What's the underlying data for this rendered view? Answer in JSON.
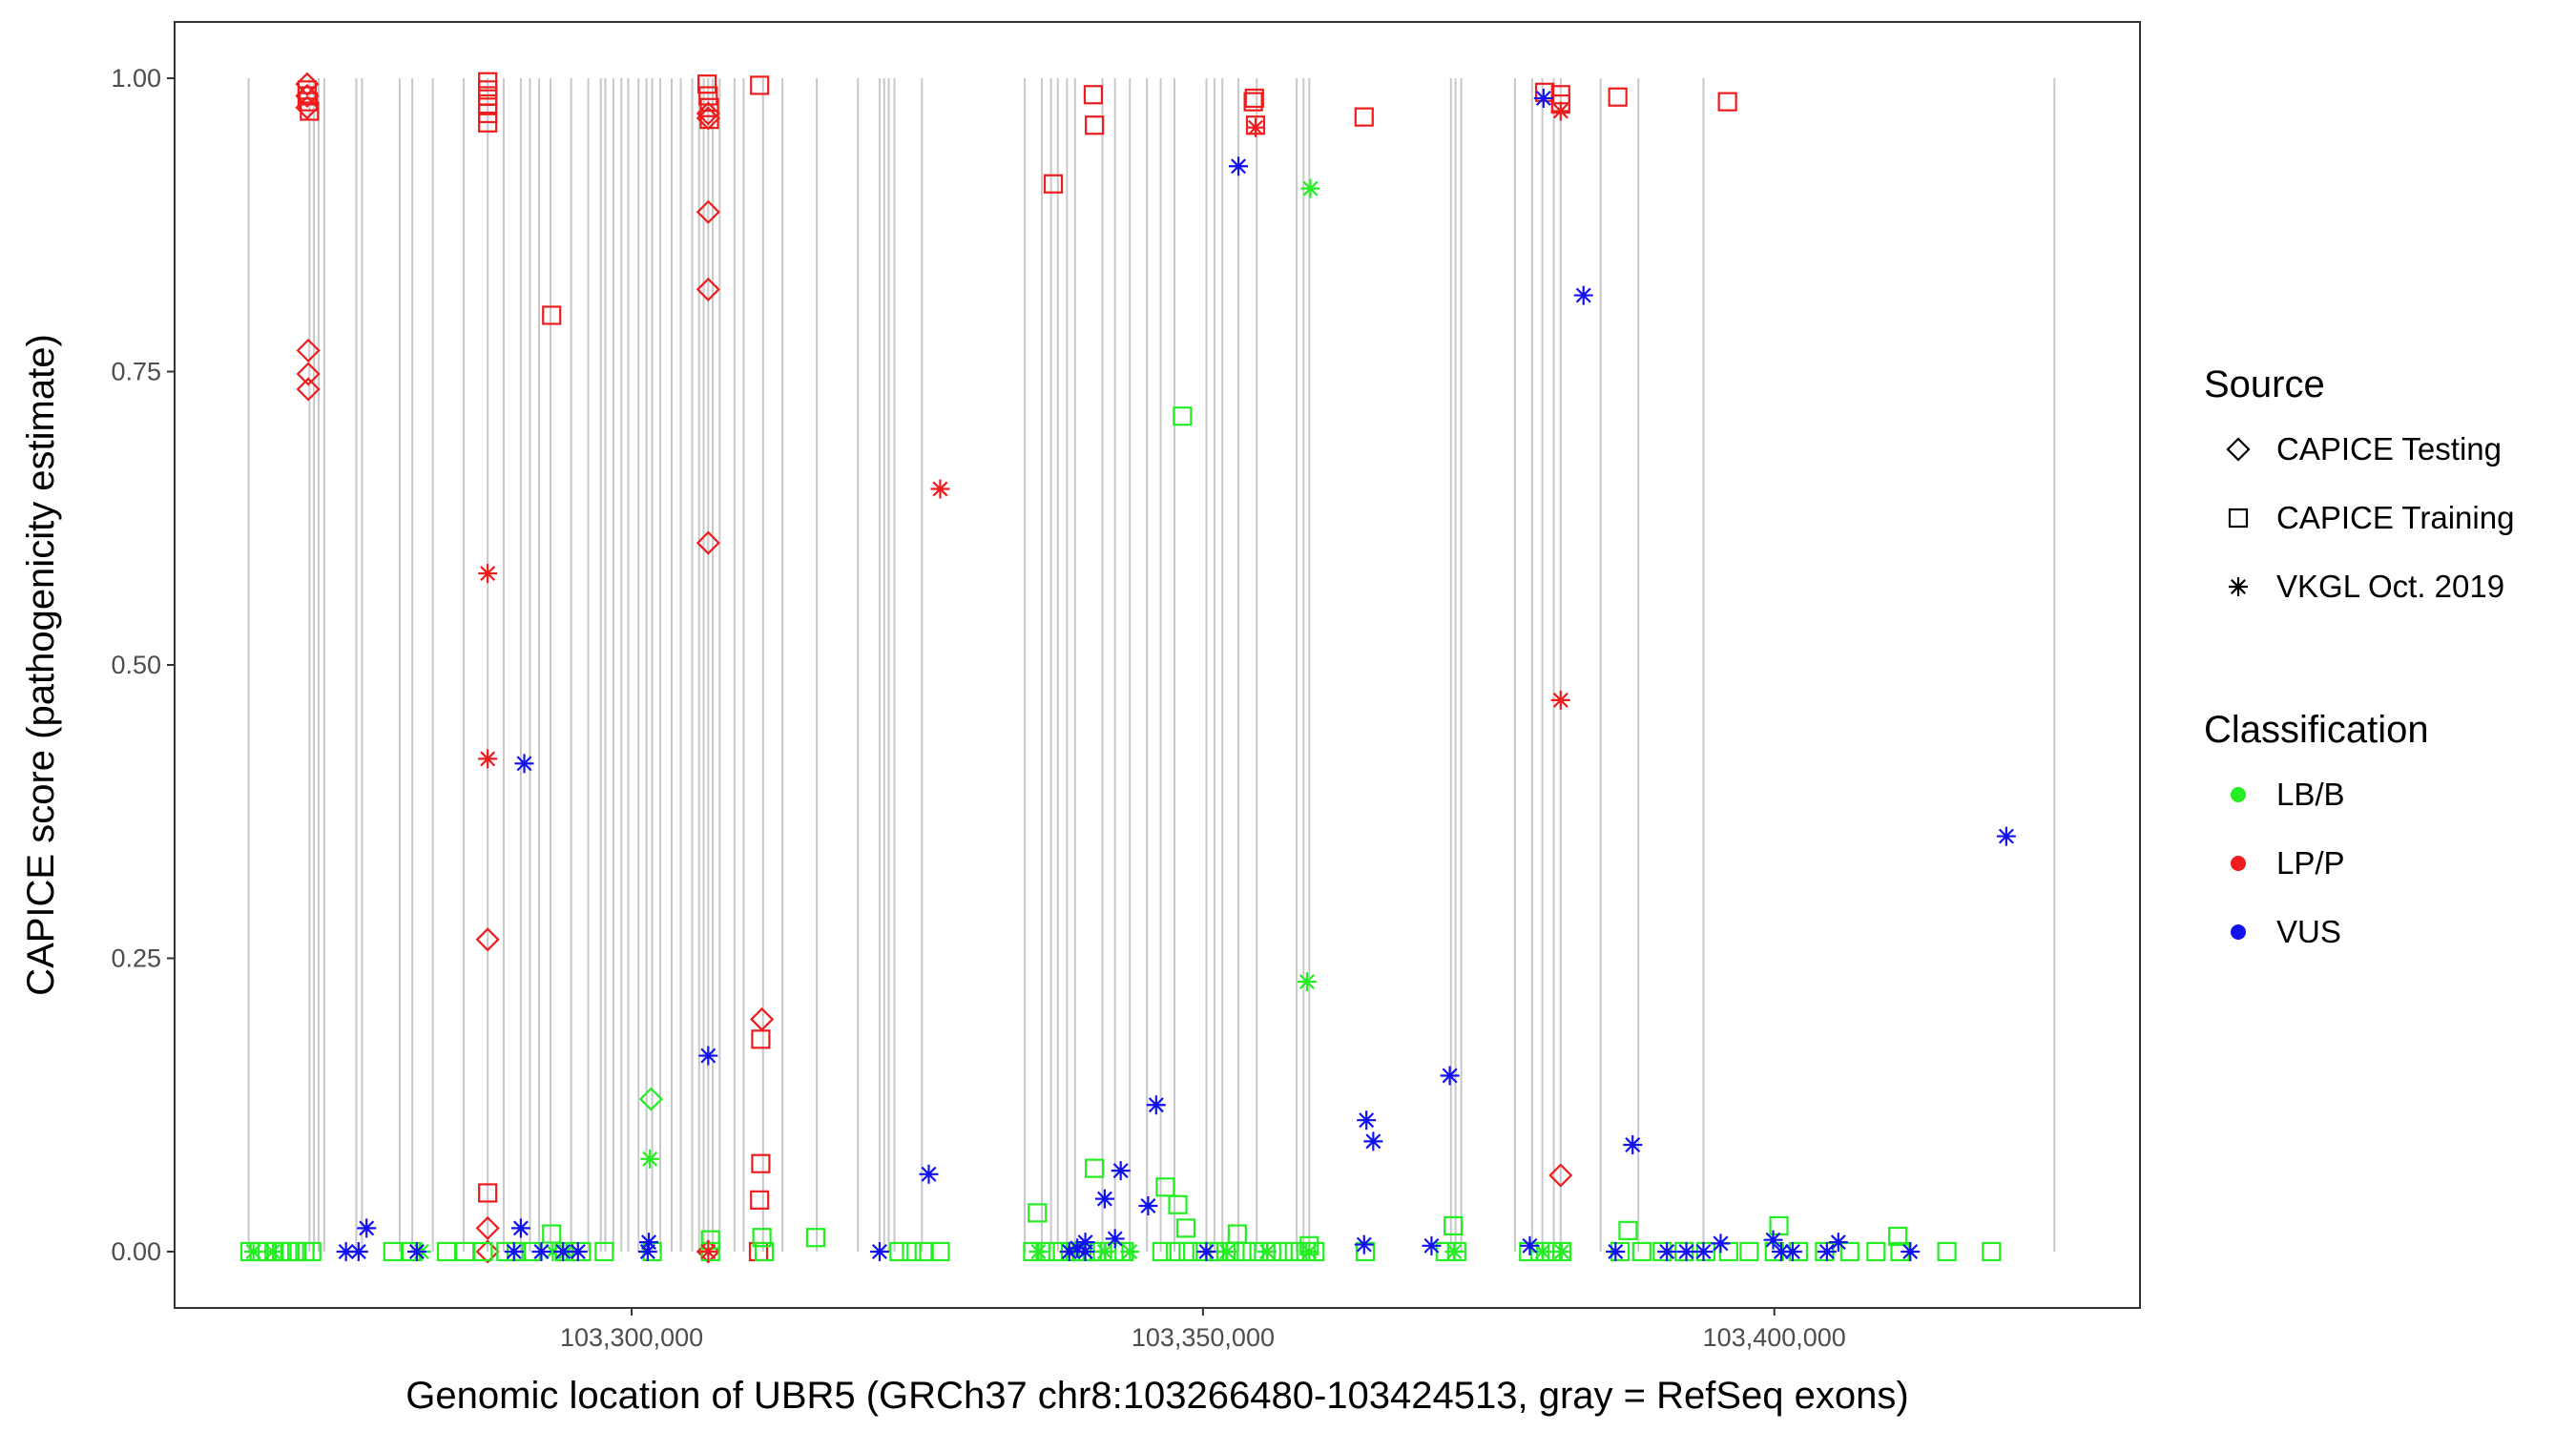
{
  "chart_data": {
    "type": "scatter",
    "title": "",
    "xlabel": "Genomic location of UBR5 (GRCh37 chr8:103266480-103424513, gray = RefSeq exons)",
    "ylabel": "CAPICE score (pathogenicity estimate)",
    "xlim": [
      103260000,
      103432000
    ],
    "ylim": [
      -0.048,
      1.048
    ],
    "x_ticks": [
      103300000,
      103350000,
      103400000
    ],
    "x_tick_labels": [
      "103,300,000",
      "103,350,000",
      "103,400,000"
    ],
    "y_ticks": [
      0,
      0.25,
      0.5,
      0.75,
      1.0
    ],
    "y_tick_labels": [
      "0.00",
      "0.25",
      "0.50",
      "0.75",
      "1.00"
    ],
    "grid": false,
    "exon_color": "#c8c8c8",
    "exons": [
      103266480,
      103271800,
      103272200,
      103272600,
      103273100,
      103275900,
      103276400,
      103279700,
      103280800,
      103282600,
      103285300,
      103287400,
      103288800,
      103290300,
      103291100,
      103291900,
      103292900,
      103294700,
      103296200,
      103297300,
      103297700,
      103298400,
      103299100,
      103299700,
      103300600,
      103301300,
      103301800,
      103302500,
      103303500,
      103304300,
      103305300,
      103305900,
      103306300,
      103306700,
      103307100,
      103307700,
      103309000,
      103309800,
      103311500,
      103313200,
      103316200,
      103319800,
      103321700,
      103322100,
      103322500,
      103323000,
      103325400,
      103334400,
      103335900,
      103336700,
      103337300,
      103338100,
      103338800,
      103341200,
      103342300,
      103343600,
      103345100,
      103346300,
      103347500,
      103350300,
      103351000,
      103351700,
      103353100,
      103354700,
      103358200,
      103358800,
      103359300,
      103371700,
      103372100,
      103372600,
      103377300,
      103378800,
      103379700,
      103380700,
      103381300,
      103384800,
      103388100,
      103393800,
      103424513
    ],
    "legend": {
      "position": "right",
      "source_title": "Source",
      "source_entries": [
        {
          "label": "CAPICE Testing",
          "shape": "diamond"
        },
        {
          "label": "CAPICE Training",
          "shape": "square"
        },
        {
          "label": "VKGL Oct. 2019",
          "shape": "asterisk"
        }
      ],
      "class_title": "Classification",
      "class_entries": [
        {
          "label": "LB/B",
          "color": "#22ee22"
        },
        {
          "label": "LP/P",
          "color": "#ee1c1c"
        },
        {
          "label": "VUS",
          "color": "#1212ee"
        }
      ]
    },
    "series": [
      {
        "source": "CAPICE Testing",
        "shape": "diamond",
        "classification": "LP/P",
        "color": "#ee1c1c",
        "x": [
          103271600,
          103271600,
          103271600,
          103271700,
          103271700,
          103271700,
          103287400,
          103287400,
          103287400,
          103306700,
          103306700,
          103306700,
          103306700,
          103306700,
          103306700,
          103311400,
          103381300
        ],
        "y": [
          0.995,
          0.985,
          0.975,
          0.768,
          0.748,
          0.735,
          0.266,
          0.02,
          0.0,
          0.97,
          0.966,
          0.886,
          0.82,
          0.604,
          0.0,
          0.198,
          0.065
        ]
      },
      {
        "source": "CAPICE Testing",
        "shape": "diamond",
        "classification": "LB/B",
        "color": "#22ee22",
        "x": [
          103301700
        ],
        "y": [
          0.13
        ]
      },
      {
        "source": "CAPICE Training",
        "shape": "square",
        "classification": "LP/P",
        "color": "#ee1c1c",
        "x": [
          103271600,
          103271600,
          103271700,
          103271800,
          103287400,
          103287400,
          103287400,
          103287400,
          103287400,
          103287400,
          103287400,
          103293000,
          103306600,
          103306700,
          103306800,
          103306800,
          103311200,
          103311300,
          103311300,
          103311200,
          103311100,
          103336900,
          103340400,
          103340500,
          103354400,
          103354500,
          103354600,
          103364100,
          103379900,
          103381300,
          103381300,
          103386300,
          103395900
        ],
        "y": [
          0.99,
          0.985,
          0.98,
          0.972,
          0.997,
          0.99,
          0.985,
          0.978,
          0.97,
          0.962,
          0.05,
          0.798,
          0.995,
          0.985,
          0.975,
          0.965,
          0.994,
          0.181,
          0.075,
          0.044,
          0.0,
          0.91,
          0.986,
          0.96,
          0.98,
          0.983,
          0.96,
          0.967,
          0.988,
          0.986,
          0.978,
          0.984,
          0.98
        ]
      },
      {
        "source": "CAPICE Training",
        "shape": "square",
        "classification": "LB/B",
        "color": "#22ee22",
        "x": [
          103293000,
          103306900,
          103311400,
          103316100,
          103335500,
          103340500,
          103346700,
          103347800,
          103348200,
          103348500,
          103353000,
          103359300,
          103371900,
          103387200,
          103400400,
          103410800,
          103266600,
          103267400,
          103268100,
          103268700,
          103269400,
          103270100,
          103270700,
          103271400,
          103272000,
          103279100,
          103280700,
          103283800,
          103285400,
          103287000,
          103289000,
          103289900,
          103291200,
          103294100,
          103295600,
          103297600,
          103301800,
          103306900,
          103311600,
          103323400,
          103324500,
          103325600,
          103327000,
          103335100,
          103336200,
          103337300,
          103338400,
          103339400,
          103340300,
          103341200,
          103342200,
          103343100,
          103346400,
          103347600,
          103348700,
          103349900,
          103351000,
          103352000,
          103352800,
          103353800,
          103354900,
          103356000,
          103357000,
          103358000,
          103359000,
          103359800,
          103364200,
          103371200,
          103372200,
          103378500,
          103379500,
          103380500,
          103381400,
          103386500,
          103388400,
          103390200,
          103392100,
          103394000,
          103396000,
          103397800,
          103400000,
          103402100,
          103404400,
          103406600,
          103408900,
          103411000,
          103415100,
          103419000
        ],
        "y": [
          0.015,
          0.01,
          0.012,
          0.012,
          0.033,
          0.071,
          0.055,
          0.04,
          0.712,
          0.02,
          0.015,
          0.005,
          0.022,
          0.018,
          0.022,
          0.013,
          0.0,
          0.0,
          0.0,
          0.0,
          0.0,
          0.0,
          0.0,
          0.0,
          0.0,
          0.0,
          0.0,
          0.0,
          0.0,
          0.0,
          0.0,
          0.0,
          0.0,
          0.0,
          0.0,
          0.0,
          0.0,
          0.0,
          0.0,
          0.0,
          0.0,
          0.0,
          0.0,
          0.0,
          0.0,
          0.0,
          0.0,
          0.0,
          0.0,
          0.0,
          0.0,
          0.0,
          0.0,
          0.0,
          0.0,
          0.0,
          0.0,
          0.0,
          0.0,
          0.0,
          0.0,
          0.0,
          0.0,
          0.0,
          0.0,
          0.0,
          0.0,
          0.0,
          0.0,
          0.0,
          0.0,
          0.0,
          0.0,
          0.0,
          0.0,
          0.0,
          0.0,
          0.0,
          0.0,
          0.0,
          0.0,
          0.0,
          0.0,
          0.0,
          0.0,
          0.0,
          0.0,
          0.0
        ]
      },
      {
        "source": "VKGL Oct. 2019",
        "shape": "asterisk",
        "classification": "LP/P",
        "color": "#ee1c1c",
        "x": [
          103287400,
          103287400,
          103306700,
          103327000,
          103354600,
          103381300,
          103381300
        ],
        "y": [
          0.578,
          0.42,
          0.0,
          0.65,
          0.958,
          0.972,
          0.47
        ]
      },
      {
        "source": "VKGL Oct. 2019",
        "shape": "asterisk",
        "classification": "LB/B",
        "color": "#22ee22",
        "x": [
          103359400,
          103359100,
          103301600,
          103266900,
          103268600,
          103281600,
          103293100,
          103294300,
          103335600,
          103338600,
          103341400,
          103343600,
          103352100,
          103355600,
          103359300,
          103372000,
          103379700,
          103381400
        ],
        "y": [
          0.906,
          0.23,
          0.079,
          0.0,
          0.0,
          0.0,
          0.0,
          0.0,
          0.0,
          0.0,
          0.0,
          0.0,
          0.0,
          0.0,
          0.0,
          0.0,
          0.0,
          0.0
        ]
      },
      {
        "source": "VKGL Oct. 2019",
        "shape": "asterisk",
        "classification": "VUS",
        "color": "#1212ee",
        "x": [
          103290600,
          103306700,
          103326000,
          103353100,
          103383300,
          103379800,
          103420300,
          103371600,
          103364300,
          103364900,
          103387600,
          103345900,
          103342800,
          103345200,
          103341400,
          103342300,
          103339000,
          103339700,
          103276800,
          103290300,
          103301500,
          103276100,
          103275000,
          103281200,
          103289700,
          103292100,
          103294000,
          103295300,
          103301400,
          103321700,
          103338300,
          103339700,
          103350300,
          103364100,
          103370000,
          103378600,
          103386100,
          103390600,
          103392300,
          103393800,
          103395300,
          103399900,
          103400600,
          103401600,
          103404600,
          103405600,
          103411900
        ],
        "y": [
          0.416,
          0.167,
          0.066,
          0.925,
          0.815,
          0.983,
          0.354,
          0.15,
          0.112,
          0.094,
          0.091,
          0.125,
          0.069,
          0.039,
          0.045,
          0.011,
          0.003,
          0.008,
          0.02,
          0.02,
          0.008,
          0.0,
          0.0,
          0.0,
          0.0,
          0.0,
          0.0,
          0.0,
          0.0,
          0.0,
          0.0,
          0.0,
          0.0,
          0.006,
          0.005,
          0.005,
          0.0,
          0.0,
          0.0,
          0.0,
          0.007,
          0.01,
          0.0,
          0.0,
          0.0,
          0.008,
          0.0
        ]
      }
    ]
  }
}
